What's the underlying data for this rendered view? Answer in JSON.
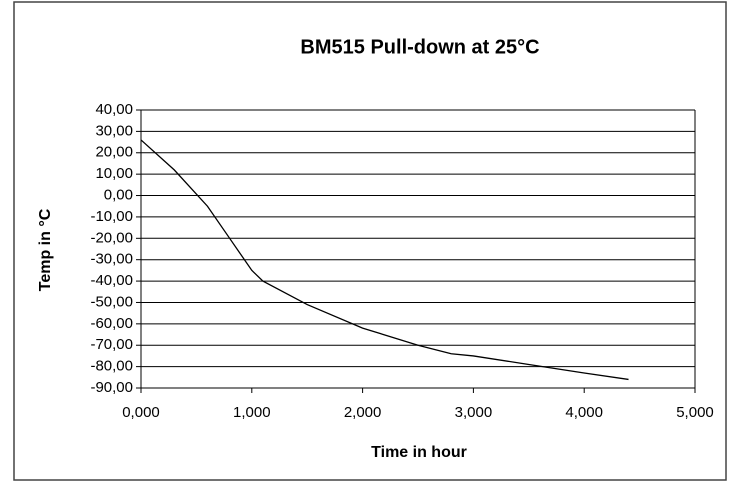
{
  "chart_data": {
    "type": "line",
    "title": "BM515 Pull-down at 25°C",
    "x_label": "Time in hour",
    "y_label": "Temp in °C",
    "x": [
      0,
      0.3,
      0.6,
      0.8,
      1.0,
      1.1,
      1.5,
      2.0,
      2.5,
      2.8,
      3.0,
      3.5,
      4.0,
      4.4
    ],
    "series": [
      {
        "name": "Temp",
        "color": "#000000",
        "values": [
          26,
          12,
          -5,
          -20,
          -35,
          -40,
          -51,
          -62,
          -70,
          -74,
          -75,
          -79,
          -83,
          -86
        ]
      }
    ],
    "xlim": [
      0,
      5
    ],
    "xticks": [
      {
        "value": 0,
        "label": "0,000"
      },
      {
        "value": 1,
        "label": "1,000"
      },
      {
        "value": 2,
        "label": "2,000"
      },
      {
        "value": 3,
        "label": "3,000"
      },
      {
        "value": 4,
        "label": "4,000"
      },
      {
        "value": 5,
        "label": "5,000"
      }
    ],
    "ylim": [
      -90,
      40
    ],
    "yticks": [
      {
        "value": 40,
        "label": "40,00"
      },
      {
        "value": 30,
        "label": "30,00"
      },
      {
        "value": 20,
        "label": "20,00"
      },
      {
        "value": 10,
        "label": "10,00"
      },
      {
        "value": 0,
        "label": "0,00"
      },
      {
        "value": -10,
        "label": "-10,00"
      },
      {
        "value": -20,
        "label": "-20,00"
      },
      {
        "value": -30,
        "label": "-30,00"
      },
      {
        "value": -40,
        "label": "-40,00"
      },
      {
        "value": -50,
        "label": "-50,00"
      },
      {
        "value": -60,
        "label": "-60,00"
      },
      {
        "value": -70,
        "label": "-70,00"
      },
      {
        "value": -80,
        "label": "-80,00"
      },
      {
        "value": -90,
        "label": "-90,00"
      }
    ],
    "grid": true
  }
}
